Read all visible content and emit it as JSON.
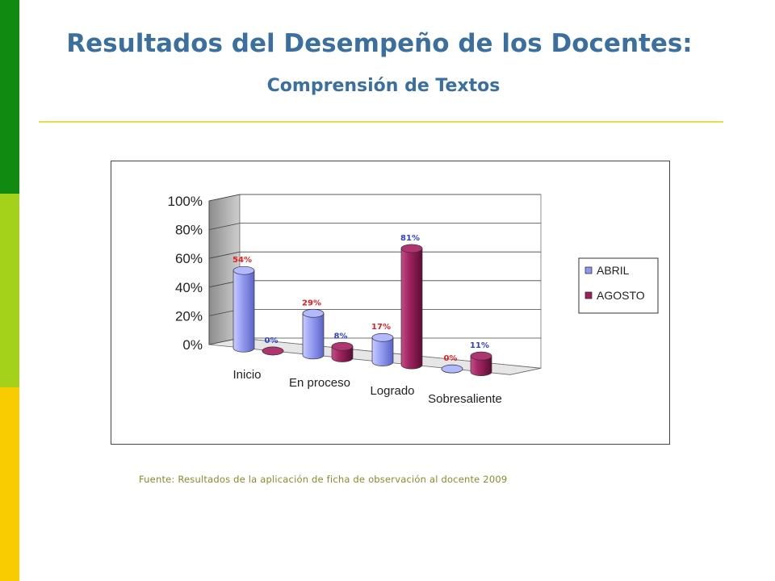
{
  "slide": {
    "title": "Resultados del Desempeño de los Docentes:",
    "subtitle": "Comprensión de Textos",
    "source": "Fuente: Resultados de la aplicación de ficha de observación al docente 2009",
    "colors": {
      "title": "#3a6f9e",
      "rule": "#e8dc4a",
      "strip_top": "#108a10",
      "strip_middle": "#a4d21a",
      "strip_bottom": "#f8cc00"
    }
  },
  "chart_data": {
    "type": "bar",
    "style": "3d-cylinder",
    "categories": [
      "Inicio",
      "En proceso",
      "Logrado",
      "Sobresaliente"
    ],
    "series": [
      {
        "name": "ABRIL",
        "values": [
          54,
          29,
          17,
          0
        ],
        "labels": [
          "54%",
          "29%",
          "17%",
          "0%"
        ],
        "color": "#8e96f0",
        "label_color": "#e02020"
      },
      {
        "name": "AGOSTO",
        "values": [
          0,
          8,
          81,
          11
        ],
        "labels": [
          "0%",
          "8%",
          "81%",
          "11%"
        ],
        "color": "#9e1f5c",
        "label_color": "#2f3fd0"
      }
    ],
    "yticks": [
      "0%",
      "20%",
      "40%",
      "60%",
      "80%",
      "100%"
    ],
    "ylim": [
      0,
      100
    ],
    "legend_position": "right",
    "grid": true
  }
}
